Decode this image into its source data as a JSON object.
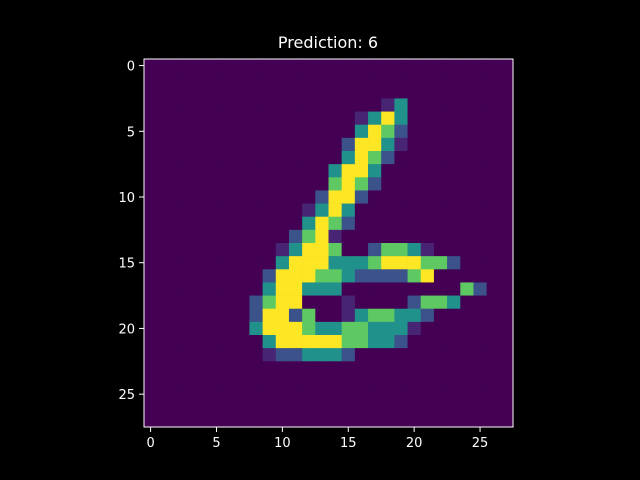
{
  "chart_data": {
    "type": "heatmap",
    "title": "Prediction: 6",
    "xlabel": "",
    "ylabel": "",
    "rows": 28,
    "cols": 28,
    "xlim": [
      -0.5,
      27.5
    ],
    "ylim": [
      27.5,
      -0.5
    ],
    "x_ticks": [
      0,
      5,
      10,
      15,
      20,
      25
    ],
    "y_ticks": [
      0,
      5,
      10,
      15,
      20,
      25
    ],
    "grid": false,
    "legend": "none",
    "colormap": "viridis",
    "background": "#000000",
    "axis_color": "#ffffff",
    "pixels": [
      "............................",
      "............................",
      "............................",
      "..................13........",
      "................1353........",
      "................3542........",
      "...............25531........",
      "...............3542.........",
      "..............3553..........",
      "..............4542..........",
      ".............2552...........",
      "............1353............",
      "............3542............",
      "...........2451.............",
      "..........13554..24431......",
      "..........35553334555442....",
      ".........2555443222245......",
      ".........355333.........42..",
      "........24550..1....2443....",
      "........25524..1344332......",
      "........3555433443331.......",
      ".........35555544332........",
      ".........1223332............",
      "............................",
      "............................",
      "............................",
      "............................",
      "............................"
    ]
  }
}
